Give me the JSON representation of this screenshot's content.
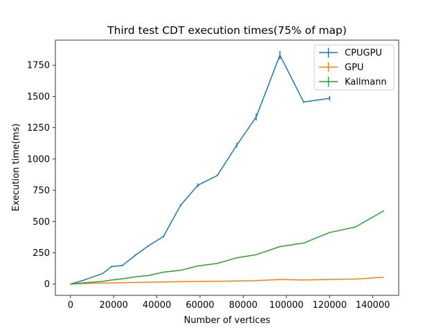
{
  "chart_data": {
    "type": "line",
    "title": "Third test CDT execution times(75% of map)",
    "xlabel": "Number of vertices",
    "ylabel": "Execution time(ms)",
    "xlim": [
      -7000,
      152000
    ],
    "ylim": [
      -90,
      1950
    ],
    "xticks": [
      0,
      20000,
      40000,
      60000,
      80000,
      100000,
      120000,
      140000
    ],
    "yticks": [
      0,
      250,
      500,
      750,
      1000,
      1250,
      1500,
      1750
    ],
    "grid": false,
    "legend_position": "top-right",
    "series": [
      {
        "name": "CPUGPU",
        "color": "#1f77b4",
        "x": [
          0,
          5000,
          10000,
          15000,
          19000,
          24000,
          30000,
          36000,
          43000,
          51000,
          59000,
          68000,
          77000,
          86000,
          97000,
          108000,
          120000
        ],
        "y": [
          0,
          25,
          55,
          85,
          140,
          148,
          230,
          305,
          380,
          630,
          790,
          868,
          1110,
          1335,
          1830,
          1455,
          1485
        ],
        "err": [
          2,
          3,
          4,
          4,
          6,
          5,
          6,
          6,
          8,
          10,
          15,
          5,
          18,
          28,
          35,
          8,
          18
        ]
      },
      {
        "name": "GPU",
        "color": "#ff7f0e",
        "x": [
          0,
          5000,
          10000,
          15000,
          19000,
          24000,
          30000,
          36000,
          43000,
          51000,
          59000,
          68000,
          77000,
          86000,
          97000,
          108000,
          120000,
          132000,
          145000
        ],
        "y": [
          0,
          4,
          6,
          8,
          9,
          11,
          13,
          15,
          16,
          19,
          22,
          23,
          25,
          27,
          37,
          33,
          37,
          40,
          55
        ],
        "err": [
          1,
          1,
          1,
          1,
          1,
          1,
          1,
          1,
          1,
          1,
          1,
          1,
          1,
          1,
          1,
          1,
          1,
          1,
          1
        ]
      },
      {
        "name": "Kallmann",
        "color": "#2ca02c",
        "x": [
          0,
          5000,
          10000,
          15000,
          19000,
          24000,
          30000,
          36000,
          43000,
          51000,
          59000,
          68000,
          77000,
          86000,
          97000,
          108000,
          120000,
          132000,
          145000
        ],
        "y": [
          0,
          8,
          15,
          22,
          32,
          42,
          58,
          68,
          95,
          110,
          145,
          165,
          210,
          235,
          300,
          328,
          412,
          457,
          585
        ],
        "err": [
          1,
          1,
          1,
          1,
          1,
          1,
          1,
          1,
          1,
          1,
          1,
          1,
          1,
          1,
          1,
          1,
          1,
          1,
          4
        ]
      }
    ]
  }
}
